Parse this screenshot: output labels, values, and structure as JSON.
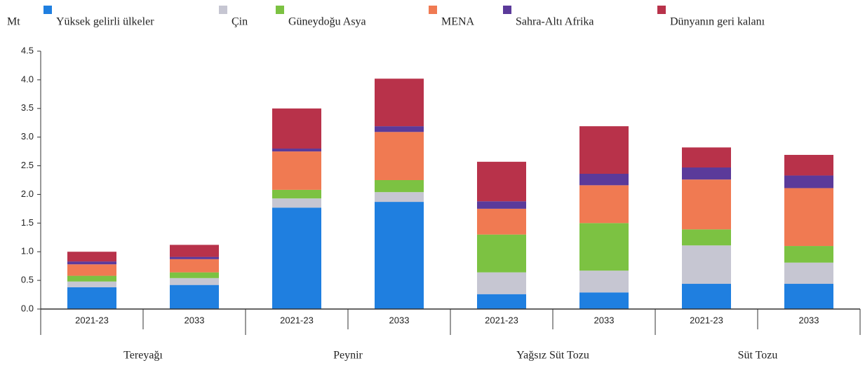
{
  "chart_data": {
    "type": "stacked_bar",
    "ylabel": "Mt",
    "categories": [
      "2021-23",
      "2033",
      "2021-23",
      "2033",
      "2021-23",
      "2033",
      "2021-23",
      "2033"
    ],
    "groups": [
      "Tereyağı",
      "Peynir",
      "Yağsız Süt Tozu",
      "Süt Tozu"
    ],
    "series": [
      {
        "name": "Yüksek gelirli ülkeler",
        "color": "#1f7fe0",
        "values": [
          0.38,
          0.42,
          1.77,
          1.87,
          0.26,
          0.29,
          0.44,
          0.44
        ]
      },
      {
        "name": "Çin",
        "color": "#c6c6d2",
        "values": [
          0.1,
          0.12,
          0.16,
          0.17,
          0.38,
          0.38,
          0.67,
          0.37
        ]
      },
      {
        "name": "Güneydoğu Asya",
        "color": "#7cc242",
        "values": [
          0.1,
          0.1,
          0.15,
          0.21,
          0.66,
          0.83,
          0.28,
          0.29
        ]
      },
      {
        "name": "MENA",
        "color": "#f07a52",
        "values": [
          0.2,
          0.23,
          0.67,
          0.84,
          0.45,
          0.66,
          0.87,
          1.01
        ]
      },
      {
        "name": "Sahra-Altı Afrika",
        "color": "#5b3a9a",
        "values": [
          0.05,
          0.04,
          0.05,
          0.1,
          0.13,
          0.2,
          0.21,
          0.22
        ]
      },
      {
        "name": "Dünyanın geri kalanı",
        "color": "#b8324a",
        "values": [
          0.17,
          0.21,
          0.7,
          0.83,
          0.69,
          0.83,
          0.35,
          0.36
        ]
      }
    ],
    "ylim": [
      0,
      4.5
    ],
    "yticks": [
      {
        "value": 0,
        "label": "0.0"
      },
      0.5,
      {
        "value": 1,
        "label": "1.0"
      },
      1.5,
      {
        "value": 2,
        "label": "2.0"
      },
      2.5,
      {
        "value": 3,
        "label": "3.0"
      },
      3.5,
      {
        "value": 4,
        "label": "4.0"
      },
      4.5
    ]
  }
}
